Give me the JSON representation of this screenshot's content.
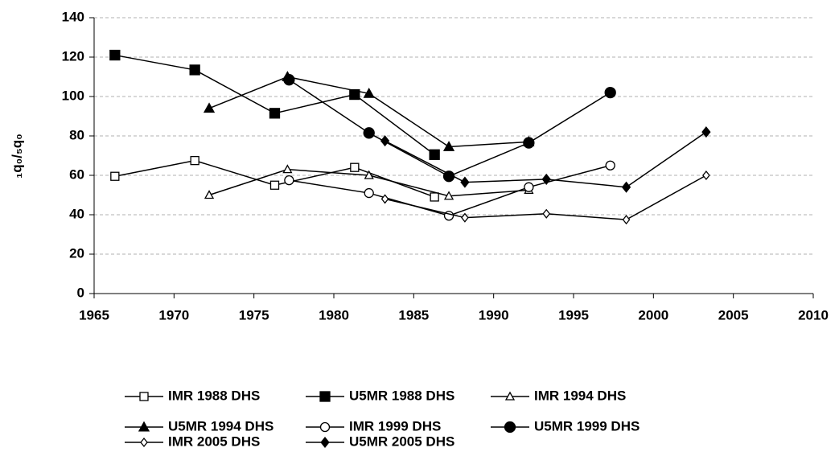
{
  "chart_data": {
    "type": "line",
    "y_label": "₁q₀/₅q₀",
    "xlim": [
      1965,
      2010
    ],
    "xticks": [
      1965,
      1970,
      1975,
      1980,
      1985,
      1990,
      1995,
      2000,
      2005,
      2010
    ],
    "ylim": [
      0,
      140
    ],
    "yticks": [
      0,
      20,
      40,
      60,
      80,
      100,
      120,
      140
    ],
    "grid": true,
    "series": [
      {
        "name": "IMR 1988 DHS",
        "color": "#000000",
        "marker": "square",
        "marker_fill": "#ffffff",
        "x": [
          1966.3,
          1971.3,
          1976.3,
          1981.3,
          1986.3
        ],
        "values": [
          59.5,
          67.5,
          55,
          64,
          49
        ]
      },
      {
        "name": "U5MR 1988 DHS",
        "color": "#000000",
        "marker": "square",
        "marker_fill": "#000000",
        "x": [
          1966.3,
          1971.3,
          1976.3,
          1981.3,
          1986.3
        ],
        "values": [
          121,
          113.5,
          91.5,
          101,
          70.5
        ]
      },
      {
        "name": "IMR 1994 DHS",
        "color": "#000000",
        "marker": "triangle",
        "marker_fill": "#ffffff",
        "x": [
          1972.2,
          1977.1,
          1982.2,
          1987.2,
          1992.2
        ],
        "values": [
          50,
          63,
          60,
          49.5,
          52.5
        ]
      },
      {
        "name": "U5MR 1994 DHS",
        "color": "#000000",
        "marker": "triangle",
        "marker_fill": "#000000",
        "x": [
          1972.2,
          1977.1,
          1982.2,
          1987.2,
          1992.2
        ],
        "values": [
          94,
          110,
          101.5,
          74.5,
          77
        ]
      },
      {
        "name": "IMR 1999 DHS",
        "color": "#000000",
        "marker": "circle",
        "marker_fill": "#ffffff",
        "x": [
          1977.2,
          1982.2,
          1987.2,
          1992.2,
          1997.3
        ],
        "values": [
          57.5,
          51,
          39.5,
          54,
          65
        ]
      },
      {
        "name": "U5MR 1999 DHS",
        "color": "#000000",
        "marker": "circle",
        "marker_fill": "#000000",
        "x": [
          1977.2,
          1982.2,
          1987.2,
          1992.2,
          1997.3
        ],
        "values": [
          108.5,
          81.5,
          59.5,
          76.5,
          102
        ]
      },
      {
        "name": "IMR 2005 DHS",
        "color": "#000000",
        "marker": "diamond",
        "marker_fill": "#ffffff",
        "x": [
          1983.2,
          1988.2,
          1993.3,
          1998.3,
          2003.3
        ],
        "values": [
          48,
          38.5,
          40.5,
          37.5,
          60
        ]
      },
      {
        "name": "U5MR 2005 DHS",
        "color": "#000000",
        "marker": "diamond",
        "marker_fill": "#000000",
        "x": [
          1983.2,
          1988.2,
          1993.3,
          1998.3,
          2003.3
        ],
        "values": [
          77.5,
          56.5,
          58,
          54,
          82
        ]
      }
    ]
  }
}
